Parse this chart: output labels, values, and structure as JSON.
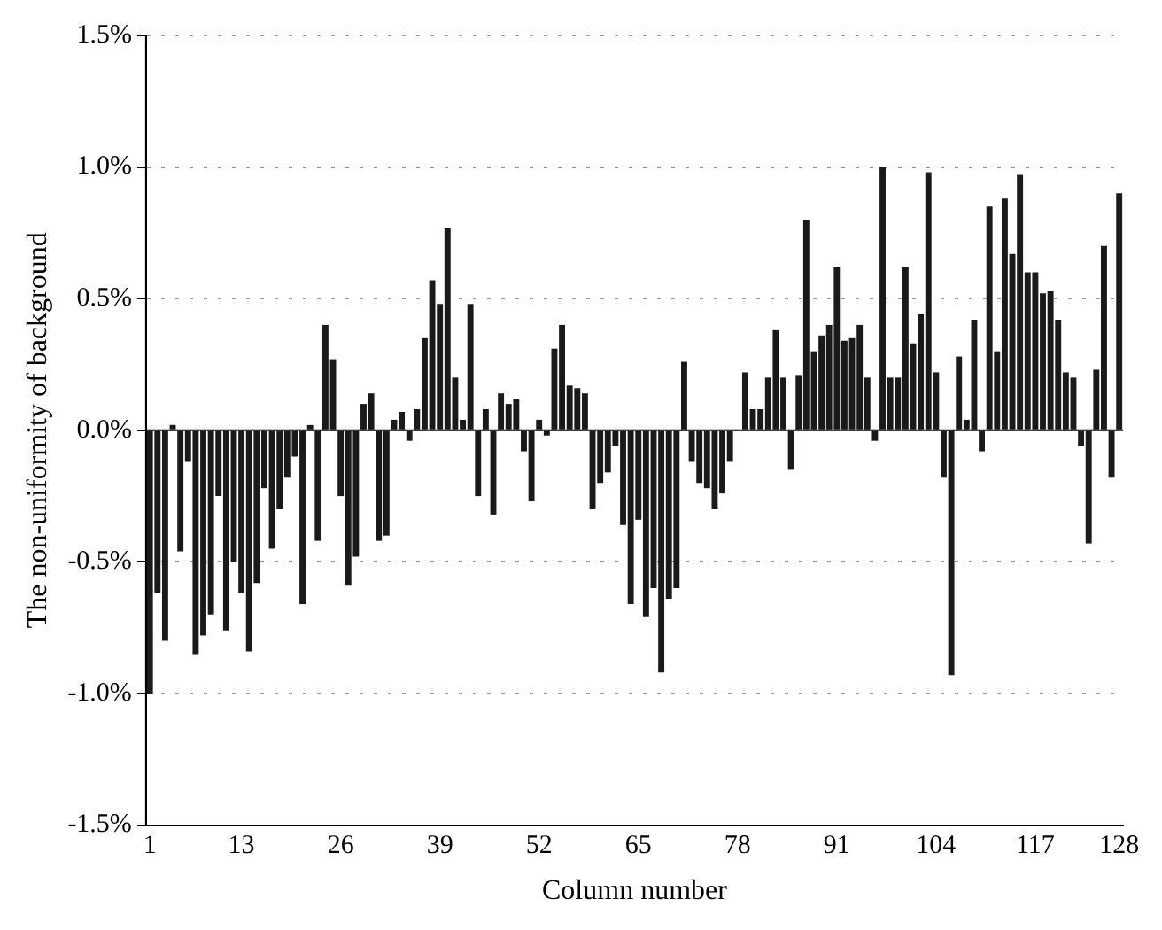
{
  "chart_data": {
    "type": "bar",
    "xlabel": "Column number",
    "ylabel": "The non-uniformity of background",
    "categories": [
      "1",
      null,
      null,
      null,
      null,
      null,
      null,
      null,
      null,
      null,
      null,
      null,
      "13",
      null,
      null,
      null,
      null,
      null,
      null,
      null,
      null,
      null,
      null,
      null,
      null,
      "26",
      null,
      null,
      null,
      null,
      null,
      null,
      null,
      null,
      null,
      null,
      null,
      null,
      "39",
      null,
      null,
      null,
      null,
      null,
      null,
      null,
      null,
      null,
      null,
      null,
      null,
      "52",
      null,
      null,
      null,
      null,
      null,
      null,
      null,
      null,
      null,
      null,
      null,
      null,
      "65",
      null,
      null,
      null,
      null,
      null,
      null,
      null,
      null,
      null,
      null,
      null,
      null,
      "78",
      null,
      null,
      null,
      null,
      null,
      null,
      null,
      null,
      null,
      null,
      null,
      null,
      "91",
      null,
      null,
      null,
      null,
      null,
      null,
      null,
      null,
      null,
      null,
      null,
      null,
      "104",
      null,
      null,
      null,
      null,
      null,
      null,
      null,
      null,
      null,
      null,
      null,
      null,
      "117",
      null,
      null,
      null,
      null,
      null,
      null,
      null,
      null,
      null,
      null,
      "128"
    ],
    "values": [
      -1.0,
      -0.62,
      -0.8,
      0.02,
      -0.46,
      -0.12,
      -0.85,
      -0.78,
      -0.7,
      -0.25,
      -0.76,
      -0.5,
      -0.62,
      -0.84,
      -0.58,
      -0.22,
      -0.45,
      -0.3,
      -0.18,
      -0.1,
      -0.66,
      0.02,
      -0.42,
      0.4,
      0.27,
      -0.25,
      -0.59,
      -0.48,
      0.1,
      0.14,
      -0.42,
      -0.4,
      0.04,
      0.07,
      -0.04,
      0.08,
      0.35,
      0.57,
      0.48,
      0.77,
      0.2,
      0.04,
      0.48,
      -0.25,
      0.08,
      -0.32,
      0.14,
      0.1,
      0.12,
      -0.08,
      -0.27,
      0.04,
      -0.02,
      0.31,
      0.4,
      0.17,
      0.16,
      0.14,
      -0.3,
      -0.2,
      -0.16,
      -0.06,
      -0.36,
      -0.66,
      -0.34,
      -0.71,
      -0.6,
      -0.92,
      -0.64,
      -0.6,
      0.26,
      -0.12,
      -0.2,
      -0.22,
      -0.3,
      -0.24,
      -0.12,
      0.0,
      0.22,
      0.08,
      0.08,
      0.2,
      0.38,
      0.2,
      -0.15,
      0.21,
      0.8,
      0.3,
      0.36,
      0.4,
      0.62,
      0.34,
      0.35,
      0.4,
      0.2,
      -0.04,
      1.0,
      0.2,
      0.2,
      0.62,
      0.33,
      0.44,
      0.98,
      0.22,
      -0.18,
      -0.93,
      0.28,
      0.04,
      0.42,
      -0.08,
      0.85,
      0.3,
      0.88,
      0.67,
      0.97,
      0.6,
      0.6,
      0.52,
      0.53,
      0.42,
      0.22,
      0.2,
      -0.06,
      -0.43,
      0.23,
      0.7,
      -0.18,
      0.9
    ],
    "color": "#1a1a1a",
    "ylim": [
      -1.5,
      1.5
    ],
    "yticks": [
      {
        "value": -1.5,
        "label": "-1.5%"
      },
      {
        "value": -1.0,
        "label": "-1.0%"
      },
      {
        "value": -0.5,
        "label": "-0.5%"
      },
      {
        "value": 0.0,
        "label": "0.0%"
      },
      {
        "value": 0.5,
        "label": "0.5%"
      },
      {
        "value": 1.0,
        "label": "1.0%"
      },
      {
        "value": 1.5,
        "label": "1.5%"
      }
    ],
    "grid": "y"
  }
}
